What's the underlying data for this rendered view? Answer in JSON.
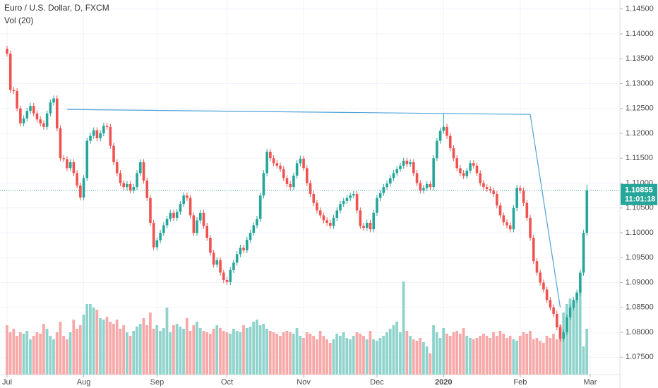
{
  "chart_data": {
    "type": "candlestick",
    "title": "Euro / U.S. Dollar, D, FXCM",
    "indicator": "Vol (20)",
    "up_color": "#26a69a",
    "down_color": "#ef5350",
    "volume_up_color": "#8fd3cc",
    "volume_down_color": "#f6a9a8",
    "grid": true,
    "ylim": [
      1.0715,
      1.1468
    ],
    "yticks": [
      {
        "value": 1.145,
        "label": "1.14500"
      },
      {
        "value": 1.14,
        "label": "1.14000"
      },
      {
        "value": 1.135,
        "label": "1.13500"
      },
      {
        "value": 1.13,
        "label": "1.13000"
      },
      {
        "value": 1.125,
        "label": "1.12500"
      },
      {
        "value": 1.12,
        "label": "1.12000"
      },
      {
        "value": 1.115,
        "label": "1.11500"
      },
      {
        "value": 1.11,
        "label": "1.11000"
      },
      {
        "value": 1.105,
        "label": "1.10500"
      },
      {
        "value": 1.1,
        "label": "1.10000"
      },
      {
        "value": 1.095,
        "label": "1.09500"
      },
      {
        "value": 1.09,
        "label": "1.09000"
      },
      {
        "value": 1.085,
        "label": "1.08500"
      },
      {
        "value": 1.08,
        "label": "1.08000"
      },
      {
        "value": 1.075,
        "label": "1.07500"
      }
    ],
    "xticks": [
      {
        "value": 0,
        "label": "Jul"
      },
      {
        "value": 23,
        "label": "Aug"
      },
      {
        "value": 45,
        "label": "Sep"
      },
      {
        "value": 66,
        "label": "Oct"
      },
      {
        "value": 89,
        "label": "Nov"
      },
      {
        "value": 111,
        "label": "Dec"
      },
      {
        "value": 131,
        "label": "2020"
      },
      {
        "value": 154,
        "label": "Feb"
      },
      {
        "value": 175,
        "label": "Mar"
      }
    ],
    "last_price": 1.10855,
    "countdown": "11:01:18",
    "trendline": {
      "color": "#4fa3d6",
      "points": [
        [
          18,
          1.1248
        ],
        [
          157,
          1.1238
        ],
        [
          166,
          1.085
        ]
      ]
    },
    "open": [
      1.137,
      1.136,
      1.1287,
      1.1285,
      1.125,
      1.122,
      1.123,
      1.1245,
      1.1255,
      1.124,
      1.1228,
      1.122,
      1.1213,
      1.124,
      1.1262,
      1.127,
      1.121,
      1.115,
      1.1148,
      1.113,
      1.1142,
      1.112,
      1.1095,
      1.1071,
      1.111,
      1.1185,
      1.1195,
      1.1206,
      1.119,
      1.12,
      1.1215,
      1.1213,
      1.1175,
      1.1142,
      1.112,
      1.11,
      1.1092,
      1.1098,
      1.1085,
      1.1092,
      1.112,
      1.1142,
      1.1105,
      1.107,
      1.102,
      1.0971,
      1.0985,
      1.1,
      1.1015,
      1.1028,
      1.104,
      1.103,
      1.1042,
      1.1058,
      1.1075,
      1.107,
      1.1035,
      1.1,
      1.1025,
      1.104,
      1.1014,
      1.099,
      1.096,
      1.0936,
      1.0945,
      1.092,
      1.0905,
      1.0901,
      1.0925,
      1.094,
      1.0957,
      1.097,
      1.0965,
      1.0986,
      1.1,
      1.1015,
      1.1028,
      1.1075,
      1.112,
      1.1163,
      1.115,
      1.114,
      1.1135,
      1.1128,
      1.111,
      1.1098,
      1.1092,
      1.1115,
      1.114,
      1.1149,
      1.113,
      1.11,
      1.1078,
      1.106,
      1.1045,
      1.1035,
      1.1025,
      1.102,
      1.1014,
      1.103,
      1.1045,
      1.1058,
      1.1064,
      1.107,
      1.1075,
      1.1078,
      1.1045,
      1.1014,
      1.101,
      1.102,
      1.1007,
      1.104,
      1.107,
      1.108,
      1.1092,
      1.1099,
      1.111,
      1.112,
      1.1128,
      1.1135,
      1.1145,
      1.1138,
      1.1142,
      1.112,
      1.11,
      1.1085,
      1.109,
      1.1098,
      1.1092,
      1.115,
      1.1185,
      1.1205,
      1.1213,
      1.1195,
      1.117,
      1.115,
      1.113,
      1.112,
      1.1114,
      1.1125,
      1.114,
      1.1135,
      1.112,
      1.11,
      1.1092,
      1.1088,
      1.1085,
      1.1078,
      1.1055,
      1.1035,
      1.1021,
      1.1015,
      1.1007,
      1.105,
      1.109,
      1.1085,
      1.106,
      1.103,
      1.099,
      1.0943,
      1.092,
      1.09,
      1.0886,
      1.0865,
      1.085,
      1.0837,
      1.081,
      1.0787,
      1.08,
      1.083,
      1.085,
      1.0865,
      1.088,
      1.092,
      1.1
    ],
    "close": [
      1.136,
      1.1287,
      1.1285,
      1.125,
      1.122,
      1.123,
      1.1245,
      1.1255,
      1.124,
      1.1228,
      1.122,
      1.1213,
      1.124,
      1.1262,
      1.127,
      1.121,
      1.115,
      1.1148,
      1.113,
      1.1142,
      1.112,
      1.1095,
      1.1071,
      1.111,
      1.1185,
      1.1195,
      1.1206,
      1.119,
      1.12,
      1.1215,
      1.1213,
      1.1175,
      1.1142,
      1.112,
      1.11,
      1.1092,
      1.1098,
      1.1085,
      1.1092,
      1.112,
      1.1142,
      1.1105,
      1.107,
      1.102,
      1.0971,
      1.0985,
      1.1,
      1.1015,
      1.1028,
      1.104,
      1.103,
      1.1042,
      1.1058,
      1.1075,
      1.107,
      1.1035,
      1.1,
      1.1025,
      1.104,
      1.1014,
      1.099,
      1.096,
      1.0936,
      1.0945,
      1.092,
      1.0905,
      1.0901,
      1.0925,
      1.094,
      1.0957,
      1.097,
      1.0965,
      1.0986,
      1.1,
      1.1015,
      1.1028,
      1.1075,
      1.112,
      1.1163,
      1.115,
      1.114,
      1.1135,
      1.1128,
      1.111,
      1.1098,
      1.1092,
      1.1115,
      1.114,
      1.1149,
      1.113,
      1.11,
      1.1078,
      1.106,
      1.1045,
      1.1035,
      1.1025,
      1.102,
      1.1014,
      1.103,
      1.1045,
      1.1058,
      1.1064,
      1.107,
      1.1075,
      1.1078,
      1.1045,
      1.1014,
      1.101,
      1.102,
      1.1007,
      1.104,
      1.107,
      1.108,
      1.1092,
      1.1099,
      1.111,
      1.112,
      1.1128,
      1.1135,
      1.1145,
      1.1138,
      1.1142,
      1.112,
      1.11,
      1.1085,
      1.109,
      1.1098,
      1.1092,
      1.115,
      1.1185,
      1.1205,
      1.1213,
      1.1195,
      1.117,
      1.115,
      1.113,
      1.112,
      1.1114,
      1.1125,
      1.114,
      1.1135,
      1.112,
      1.11,
      1.1092,
      1.1088,
      1.1085,
      1.1078,
      1.1055,
      1.1035,
      1.1021,
      1.1015,
      1.1007,
      1.105,
      1.109,
      1.1085,
      1.106,
      1.103,
      1.099,
      1.0943,
      1.092,
      1.09,
      1.0886,
      1.0865,
      1.085,
      1.0837,
      1.081,
      1.0787,
      1.08,
      1.083,
      1.085,
      1.0865,
      1.088,
      1.092,
      1.1,
      1.10855
    ],
    "high": [
      1.1376,
      1.1366,
      1.1293,
      1.1291,
      1.1256,
      1.1236,
      1.1251,
      1.1261,
      1.1261,
      1.1246,
      1.1234,
      1.1226,
      1.1246,
      1.1268,
      1.1276,
      1.1276,
      1.1216,
      1.1156,
      1.1154,
      1.1148,
      1.1148,
      1.1126,
      1.1101,
      1.1116,
      1.1191,
      1.1201,
      1.1212,
      1.1212,
      1.1206,
      1.1221,
      1.1221,
      1.1219,
      1.1181,
      1.1148,
      1.1126,
      1.1106,
      1.1104,
      1.1104,
      1.1098,
      1.1126,
      1.1148,
      1.1148,
      1.1111,
      1.1076,
      1.1026,
      1.0991,
      1.1006,
      1.1021,
      1.1034,
      1.1046,
      1.1046,
      1.1048,
      1.1064,
      1.1081,
      1.1081,
      1.1076,
      1.1041,
      1.1031,
      1.1046,
      1.1046,
      1.102,
      1.0996,
      1.0966,
      1.0951,
      1.0951,
      1.0926,
      1.0911,
      1.0931,
      1.0946,
      1.0963,
      1.0976,
      1.0976,
      1.0992,
      1.1006,
      1.1021,
      1.1034,
      1.1081,
      1.1126,
      1.1169,
      1.1169,
      1.1156,
      1.1146,
      1.1141,
      1.1134,
      1.1116,
      1.1104,
      1.1121,
      1.1146,
      1.1155,
      1.1155,
      1.1136,
      1.1106,
      1.1084,
      1.1066,
      1.1051,
      1.1041,
      1.1031,
      1.1026,
      1.1036,
      1.1051,
      1.1064,
      1.107,
      1.1076,
      1.1081,
      1.1084,
      1.1084,
      1.1051,
      1.102,
      1.1026,
      1.1026,
      1.1046,
      1.1076,
      1.1086,
      1.1098,
      1.1105,
      1.1116,
      1.1126,
      1.1134,
      1.1141,
      1.1151,
      1.1151,
      1.1148,
      1.1148,
      1.1126,
      1.1106,
      1.1096,
      1.1104,
      1.1104,
      1.1156,
      1.1191,
      1.1211,
      1.124,
      1.1219,
      1.1201,
      1.1176,
      1.1156,
      1.1136,
      1.1126,
      1.1131,
      1.1146,
      1.1146,
      1.1141,
      1.1126,
      1.1106,
      1.1098,
      1.1094,
      1.1091,
      1.1084,
      1.1061,
      1.1041,
      1.1027,
      1.1021,
      1.1056,
      1.1096,
      1.1096,
      1.1091,
      1.1066,
      1.1036,
      1.0996,
      1.0949,
      1.0926,
      1.0906,
      1.0892,
      1.0871,
      1.0856,
      1.0843,
      1.0816,
      1.0806,
      1.0836,
      1.0856,
      1.0871,
      1.0886,
      1.0926,
      1.1006,
      1.1097
    ],
    "low": [
      1.1354,
      1.1281,
      1.1279,
      1.1244,
      1.1214,
      1.1214,
      1.1224,
      1.1239,
      1.1234,
      1.1222,
      1.1214,
      1.1207,
      1.1207,
      1.1234,
      1.1256,
      1.1204,
      1.1144,
      1.1142,
      1.1124,
      1.1124,
      1.1114,
      1.1089,
      1.1065,
      1.1065,
      1.1104,
      1.1179,
      1.1189,
      1.1184,
      1.1184,
      1.1194,
      1.1207,
      1.1169,
      1.1136,
      1.1114,
      1.1094,
      1.1086,
      1.1086,
      1.1079,
      1.1079,
      1.1086,
      1.1114,
      1.1099,
      1.1064,
      1.1014,
      1.0965,
      1.0965,
      1.0979,
      1.0994,
      1.1009,
      1.1022,
      1.1024,
      1.1024,
      1.1036,
      1.1052,
      1.1064,
      1.1029,
      1.0994,
      1.0994,
      1.1019,
      1.1008,
      1.0984,
      1.0954,
      1.093,
      1.093,
      1.0914,
      1.0899,
      1.0895,
      1.0895,
      1.0919,
      1.0934,
      1.0951,
      1.0959,
      1.0959,
      1.098,
      1.0994,
      1.1009,
      1.1022,
      1.1069,
      1.1114,
      1.1144,
      1.1134,
      1.1129,
      1.1122,
      1.1104,
      1.1092,
      1.1086,
      1.1086,
      1.1109,
      1.1134,
      1.1124,
      1.1094,
      1.1072,
      1.1054,
      1.1039,
      1.1029,
      1.1019,
      1.1014,
      1.1008,
      1.1008,
      1.1024,
      1.1039,
      1.1052,
      1.1058,
      1.1064,
      1.1069,
      1.1039,
      1.1008,
      1.1004,
      1.1004,
      1.1001,
      1.1001,
      1.1034,
      1.1064,
      1.1074,
      1.1086,
      1.1093,
      1.1104,
      1.1114,
      1.1122,
      1.1129,
      1.1132,
      1.1132,
      1.1114,
      1.1094,
      1.1079,
      1.1079,
      1.1084,
      1.1086,
      1.1086,
      1.1144,
      1.1179,
      1.1199,
      1.1189,
      1.1164,
      1.1144,
      1.1124,
      1.1114,
      1.1108,
      1.1108,
      1.1119,
      1.1129,
      1.1114,
      1.1094,
      1.1086,
      1.1082,
      1.1079,
      1.1072,
      1.1049,
      1.1029,
      1.1015,
      1.1009,
      1.1001,
      1.1001,
      1.1044,
      1.1079,
      1.1054,
      1.1024,
      1.0984,
      1.0937,
      1.0914,
      1.0894,
      1.088,
      1.0859,
      1.0844,
      1.0831,
      1.0804,
      1.0781,
      1.0781,
      1.0794,
      1.0824,
      1.0844,
      1.0859,
      1.0874,
      1.0914,
      1.0994
    ],
    "volume": [
      70,
      60,
      65,
      55,
      60,
      58,
      62,
      50,
      55,
      60,
      58,
      72,
      65,
      55,
      50,
      60,
      75,
      55,
      50,
      60,
      78,
      65,
      70,
      85,
      100,
      100,
      95,
      92,
      80,
      78,
      82,
      75,
      72,
      78,
      65,
      70,
      60,
      55,
      62,
      68,
      72,
      80,
      70,
      88,
      65,
      70,
      62,
      66,
      95,
      60,
      70,
      72,
      68,
      65,
      80,
      62,
      70,
      75,
      66,
      62,
      60,
      58,
      65,
      70,
      66,
      62,
      60,
      58,
      65,
      62,
      60,
      70,
      66,
      68,
      75,
      78,
      70,
      72,
      65,
      62,
      60,
      58,
      55,
      60,
      62,
      60,
      58,
      66,
      55,
      52,
      60,
      58,
      55,
      50,
      62,
      55,
      50,
      45,
      50,
      58,
      55,
      60,
      52,
      50,
      55,
      60,
      58,
      55,
      50,
      62,
      50,
      48,
      52,
      55,
      60,
      65,
      70,
      75,
      60,
      132,
      62,
      55,
      50,
      48,
      52,
      46,
      40,
      30,
      70,
      60,
      52,
      66,
      58,
      55,
      60,
      62,
      58,
      66,
      55,
      52,
      50,
      52,
      55,
      58,
      55,
      52,
      60,
      55,
      62,
      58,
      52,
      55,
      50,
      48,
      55,
      60,
      58,
      62,
      50,
      52,
      48,
      45,
      55,
      52,
      58,
      50,
      70,
      88,
      100,
      108,
      98,
      115,
      125,
      40,
      65
    ]
  }
}
